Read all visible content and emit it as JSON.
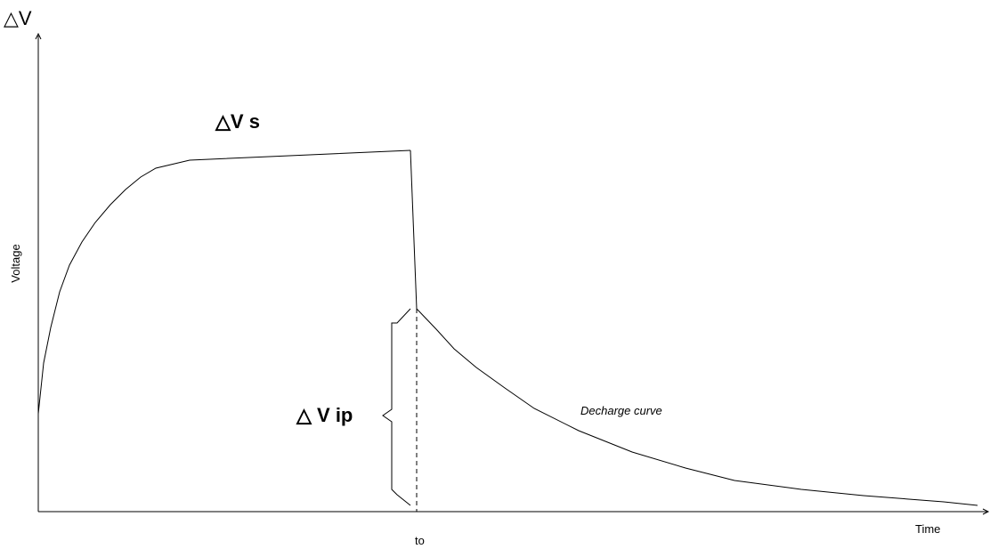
{
  "labels": {
    "y_axis_title": "△V",
    "y_axis_label": "Voltage",
    "x_axis_label": "Time",
    "x_tick_to": "to",
    "delta_vs": "△V s",
    "delta_vip": "△ V ip",
    "curve_name": "Decharge curve"
  },
  "colors": {
    "line": "#000000",
    "background": "#ffffff"
  }
}
